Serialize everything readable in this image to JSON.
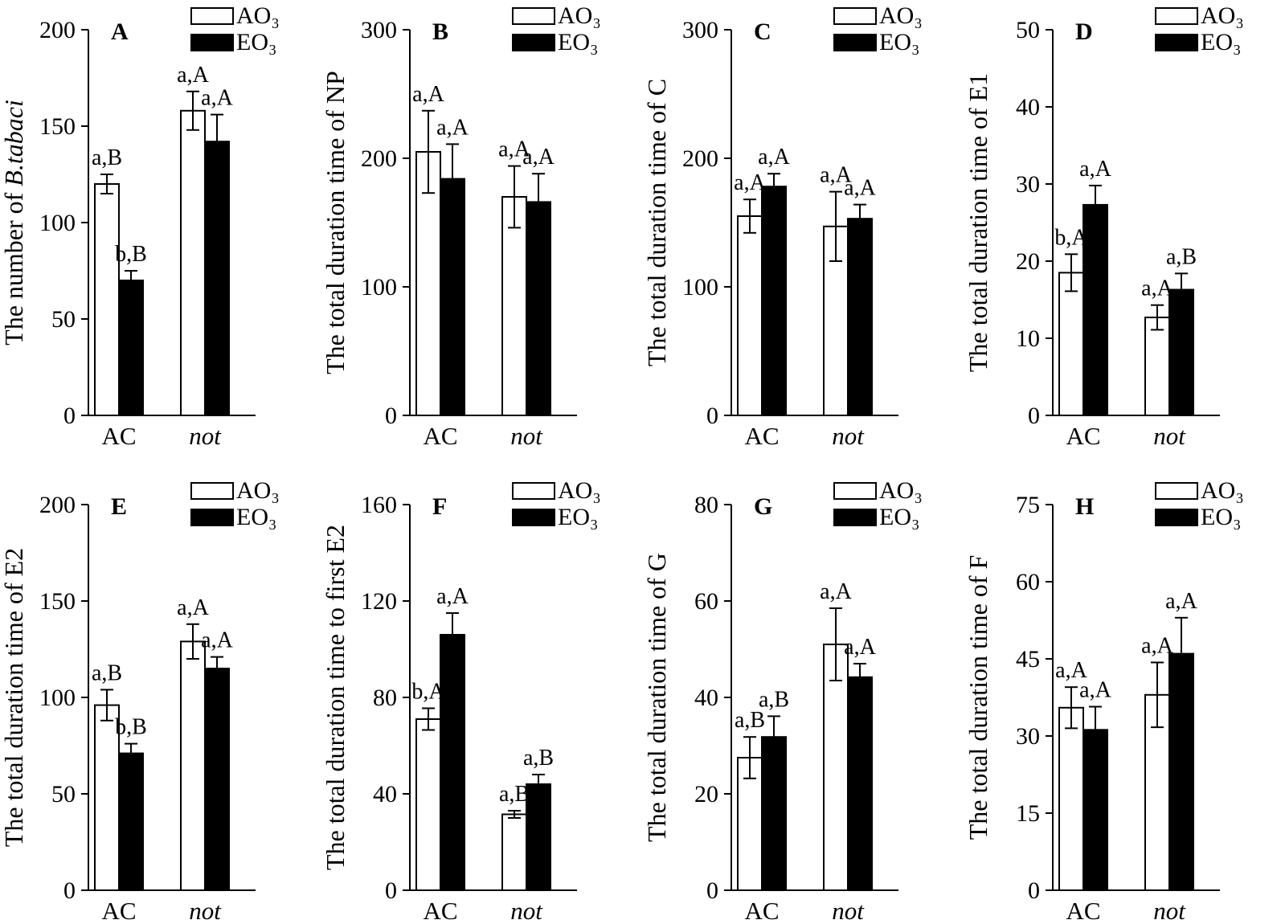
{
  "legend": {
    "ao3": "AO₃",
    "eo3": "EO₃"
  },
  "chart_data": [
    {
      "type": "bar",
      "panel": "A",
      "ylabel_parts": [
        "The number of ",
        "B.tabaci"
      ],
      "ylim": [
        0,
        200
      ],
      "yticks": [
        "0",
        "50",
        "100",
        "150",
        "200"
      ],
      "categories": [
        "AC",
        "not"
      ],
      "series": [
        {
          "name": "AO₃",
          "values": [
            120,
            158
          ],
          "errors": [
            5,
            10
          ],
          "labels": [
            "a,B",
            "a,A"
          ]
        },
        {
          "name": "EO₃",
          "values": [
            70,
            142
          ],
          "errors": [
            5,
            14
          ],
          "labels": [
            "b,B",
            "a,A"
          ]
        }
      ]
    },
    {
      "type": "bar",
      "panel": "B",
      "ylabel_parts": [
        "The total duration time of NP",
        ""
      ],
      "ylim": [
        0,
        300
      ],
      "yticks": [
        "0",
        "100",
        "200",
        "300"
      ],
      "categories": [
        "AC",
        "not"
      ],
      "series": [
        {
          "name": "AO₃",
          "values": [
            205,
            170
          ],
          "errors": [
            32,
            24
          ],
          "labels": [
            "a,A",
            "a,A"
          ]
        },
        {
          "name": "EO₃",
          "values": [
            184,
            166
          ],
          "errors": [
            27,
            22
          ],
          "labels": [
            "a,A",
            "a,A"
          ]
        }
      ]
    },
    {
      "type": "bar",
      "panel": "C",
      "ylabel_parts": [
        "The total duration time of C",
        ""
      ],
      "ylim": [
        0,
        300
      ],
      "yticks": [
        "0",
        "100",
        "200",
        "300"
      ],
      "categories": [
        "AC",
        "not"
      ],
      "series": [
        {
          "name": "AO₃",
          "values": [
            155,
            147
          ],
          "errors": [
            13,
            27
          ],
          "labels": [
            "a,A",
            "a,A"
          ]
        },
        {
          "name": "EO₃",
          "values": [
            178,
            153
          ],
          "errors": [
            10,
            11
          ],
          "labels": [
            "a,A",
            "a,A"
          ]
        }
      ]
    },
    {
      "type": "bar",
      "panel": "D",
      "ylabel_parts": [
        "The total duration time of E1",
        ""
      ],
      "ylim": [
        0,
        50
      ],
      "yticks": [
        "0",
        "10",
        "20",
        "30",
        "40",
        "50"
      ],
      "categories": [
        "AC",
        "not"
      ],
      "series": [
        {
          "name": "AO₃",
          "values": [
            18.5,
            12.7
          ],
          "errors": [
            2.4,
            1.6
          ],
          "labels": [
            "b,A",
            "a,A"
          ]
        },
        {
          "name": "EO₃",
          "values": [
            27.3,
            16.3
          ],
          "errors": [
            2.5,
            2.1
          ],
          "labels": [
            "a,A",
            "a,B"
          ]
        }
      ]
    },
    {
      "type": "bar",
      "panel": "E",
      "ylabel_parts": [
        "The total duration time of E2",
        ""
      ],
      "ylim": [
        0,
        200
      ],
      "yticks": [
        "0",
        "50",
        "100",
        "150",
        "200"
      ],
      "categories": [
        "AC",
        "not"
      ],
      "series": [
        {
          "name": "AO₃",
          "values": [
            96,
            129
          ],
          "errors": [
            8,
            9
          ],
          "labels": [
            "a,B",
            "a,A"
          ]
        },
        {
          "name": "EO₃",
          "values": [
            71,
            115
          ],
          "errors": [
            5,
            6
          ],
          "labels": [
            "b,B",
            "a,A"
          ]
        }
      ]
    },
    {
      "type": "bar",
      "panel": "F",
      "ylabel_parts": [
        "The total duration time to first E2",
        ""
      ],
      "ylim": [
        0,
        160
      ],
      "yticks": [
        "0",
        "40",
        "80",
        "120",
        "160"
      ],
      "categories": [
        "AC",
        "not"
      ],
      "series": [
        {
          "name": "AO₃",
          "values": [
            71,
            31.5
          ],
          "errors": [
            4.5,
            1.5
          ],
          "labels": [
            "b,A",
            "a,B"
          ]
        },
        {
          "name": "EO₃",
          "values": [
            106,
            44
          ],
          "errors": [
            9,
            4
          ],
          "labels": [
            "a,A",
            "a,B"
          ]
        }
      ]
    },
    {
      "type": "bar",
      "panel": "G",
      "ylabel_parts": [
        "The total duration time of G",
        ""
      ],
      "ylim": [
        0,
        80
      ],
      "yticks": [
        "0",
        "20",
        "40",
        "60",
        "80"
      ],
      "categories": [
        "AC",
        "not"
      ],
      "series": [
        {
          "name": "AO₃",
          "values": [
            27.5,
            51
          ],
          "errors": [
            4.3,
            7.5
          ],
          "labels": [
            "a,B",
            "a,A"
          ]
        },
        {
          "name": "EO₃",
          "values": [
            31.8,
            44.2
          ],
          "errors": [
            4.3,
            2.8
          ],
          "labels": [
            "a,B",
            "a,A"
          ]
        }
      ]
    },
    {
      "type": "bar",
      "panel": "H",
      "ylabel_parts": [
        "The total duration time of F",
        ""
      ],
      "ylim": [
        0,
        75
      ],
      "yticks": [
        "0",
        "15",
        "30",
        "45",
        "60",
        "75"
      ],
      "categories": [
        "AC",
        "not"
      ],
      "series": [
        {
          "name": "AO₃",
          "values": [
            35.5,
            38
          ],
          "errors": [
            4,
            6.3
          ],
          "labels": [
            "a,A",
            "a,A"
          ]
        },
        {
          "name": "EO₃",
          "values": [
            31.2,
            46
          ],
          "errors": [
            4.5,
            7
          ],
          "labels": [
            "a,A",
            "a,A"
          ]
        }
      ]
    }
  ]
}
